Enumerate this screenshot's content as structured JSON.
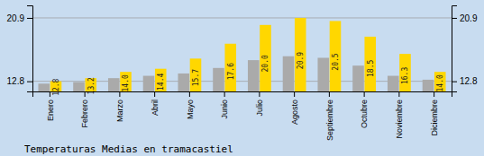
{
  "chart_data": {
    "type": "bar",
    "title": "Temperaturas Medias en tramacastiel",
    "categories": [
      "Enero",
      "Febrero",
      "Marzo",
      "Abril",
      "Mayo",
      "Junio",
      "Julio",
      "Agosto",
      "Septiembre",
      "Octubre",
      "Noviembre",
      "Diciembre"
    ],
    "series": [
      {
        "color": "#AAAAAA",
        "values": [
          12.5,
          12.7,
          13.2,
          13.5,
          13.8,
          14.5,
          15.5,
          16.0,
          15.8,
          14.8,
          13.5,
          13.0
        ]
      },
      {
        "color": "#FFD700",
        "data_labels": true,
        "values": [
          12.8,
          13.2,
          14.0,
          14.4,
          15.7,
          17.6,
          20.0,
          20.9,
          20.5,
          18.5,
          16.3,
          14.0
        ],
        "value_labels": [
          "12.8",
          "13.2",
          "14.0",
          "14.4",
          "15.7",
          "17.6",
          "20.0",
          "20.9",
          "20.5",
          "18.5",
          "16.3",
          "14.0"
        ]
      }
    ],
    "ylim": [
      11.5,
      22.5
    ],
    "yticks": [
      12.8,
      20.9
    ],
    "y2lim": [
      11.5,
      22.5
    ],
    "y2ticks": [
      12.8,
      20.9
    ],
    "grid": true
  }
}
